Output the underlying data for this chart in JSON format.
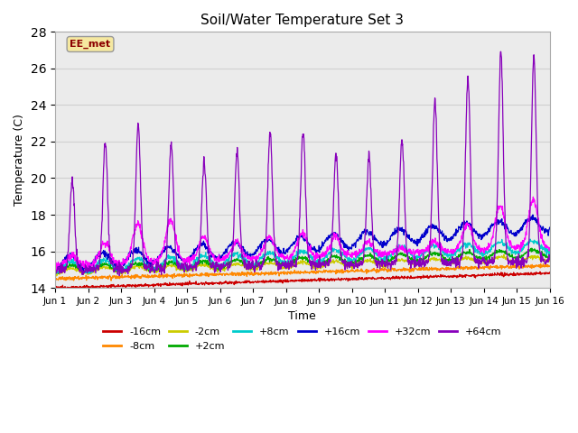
{
  "title": "Soil/Water Temperature Set 3",
  "xlabel": "Time",
  "ylabel": "Temperature (C)",
  "xlim": [
    0,
    15
  ],
  "ylim": [
    14,
    28
  ],
  "yticks": [
    14,
    16,
    18,
    20,
    22,
    24,
    26,
    28
  ],
  "xtick_labels": [
    "Jun 1",
    "Jun 2",
    "Jun 3",
    "Jun 4",
    "Jun 5",
    "Jun 6",
    "Jun 7",
    "Jun 8",
    "Jun 9",
    "Jun 10",
    "Jun 11",
    "Jun 12",
    "Jun 13",
    "Jun 14",
    "Jun 15",
    "Jun 16"
  ],
  "watermark_text": "EE_met",
  "watermark_color": "#8B0000",
  "watermark_bg": "#f5e8a0",
  "series": {
    "-16cm": {
      "color": "#cc0000"
    },
    "-8cm": {
      "color": "#ff8800"
    },
    "-2cm": {
      "color": "#cccc00"
    },
    "+2cm": {
      "color": "#00aa00"
    },
    "+8cm": {
      "color": "#00cccc"
    },
    "+16cm": {
      "color": "#0000cc"
    },
    "+32cm": {
      "color": "#ff00ff"
    },
    "+64cm": {
      "color": "#8800bb"
    }
  },
  "plot_bg": "#ebebeb",
  "grid_color": "#d0d0d0",
  "legend_ncol_row1": 6,
  "legend_ncol_row2": 2
}
